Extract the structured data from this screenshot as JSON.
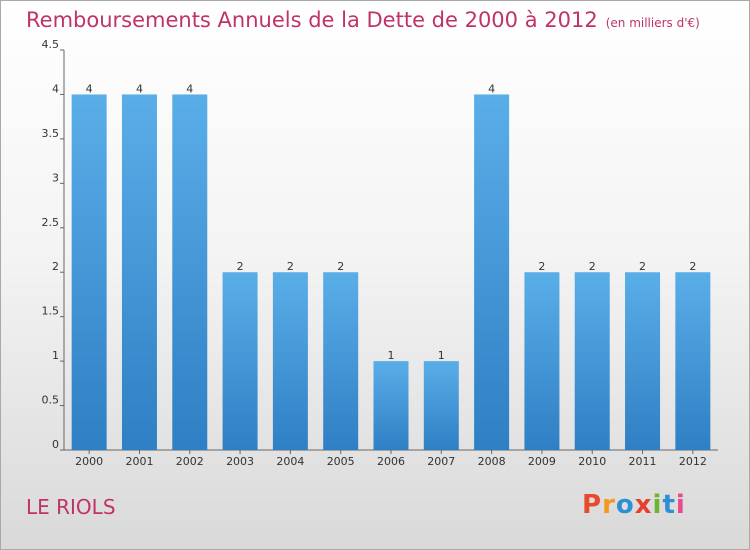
{
  "chart_data": {
    "type": "bar",
    "title": "Remboursements Annuels de la Dette de 2000 à 2012",
    "unit": "(en milliers d'€)",
    "categories": [
      "2000",
      "2001",
      "2002",
      "2003",
      "2004",
      "2005",
      "2006",
      "2007",
      "2008",
      "2009",
      "2010",
      "2011",
      "2012"
    ],
    "values": [
      4,
      4,
      4,
      2,
      2,
      2,
      1,
      1,
      4,
      2,
      2,
      2,
      2
    ],
    "ylim": [
      0,
      4.5
    ],
    "yticks": [
      "0",
      "0.5",
      "1",
      "1.5",
      "2",
      "2.5",
      "3",
      "3.5",
      "4",
      "4.5"
    ],
    "grid": false,
    "bar_color": "#4f9fe0"
  },
  "commune": "LE RIOLS",
  "logo": {
    "letters": [
      "P",
      "r",
      "o",
      "x",
      "i",
      "t",
      "i"
    ],
    "colors": [
      "#e84a2e",
      "#f39a1e",
      "#2f8fd5",
      "#e8402e",
      "#6bb52f",
      "#2f8fd5",
      "#e84a8e"
    ]
  }
}
